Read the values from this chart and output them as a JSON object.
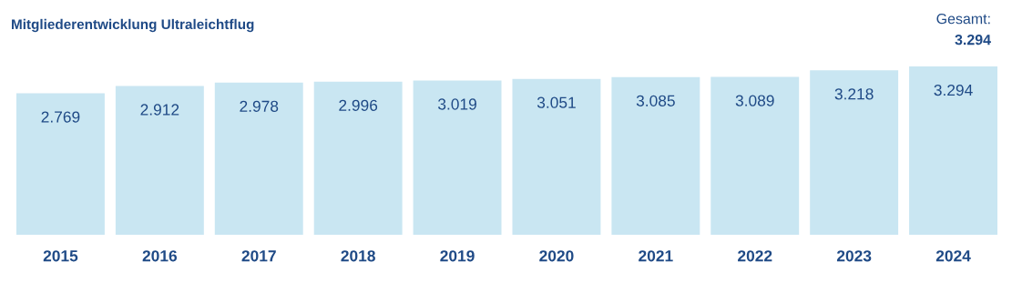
{
  "chart_data": {
    "type": "bar",
    "title": "Mitgliederentwicklung Ultraleichtflug",
    "categories": [
      "2015",
      "2016",
      "2017",
      "2018",
      "2019",
      "2020",
      "2021",
      "2022",
      "2023",
      "2024"
    ],
    "values": [
      2769,
      2912,
      2978,
      2996,
      3019,
      3051,
      3085,
      3089,
      3218,
      3294
    ],
    "value_labels": [
      "2.769",
      "2.912",
      "2.978",
      "2.996",
      "3.019",
      "3.051",
      "3.085",
      "3.089",
      "3.218",
      "3.294"
    ],
    "color": "#c9e6f2",
    "annotations": [
      "Gesamt:",
      "3.294"
    ],
    "tick_labels": "x",
    "grid": false,
    "legend": false
  }
}
